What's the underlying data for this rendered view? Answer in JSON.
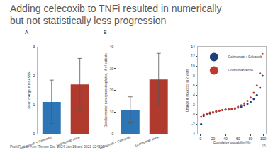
{
  "slide": {
    "title_lines": [
      "Adding celecoxib to TNFi resulted in numerically",
      "but not statistically less progression"
    ],
    "citation": "Proft F et al. Ann Rheum Dis. 2024 Jan 16:ard-2023-224699",
    "page": "15"
  },
  "chart_data": [
    {
      "type": "bar",
      "title": "A",
      "y_label": "Mean change in mSASSS",
      "categories": [
        "Golimumab + Celecoxib",
        "Golimumab alone"
      ],
      "values": [
        1.1,
        1.7
      ],
      "errors": [
        0.75,
        0.9
      ],
      "colors": [
        "#2e75b6",
        "#b03a2e"
      ],
      "ylim": [
        0,
        3
      ],
      "yticks": [
        0,
        1,
        2,
        3
      ],
      "grid": false
    },
    {
      "type": "bar",
      "title": "B",
      "y_label": "Development of new syndesmophytes, % of patients",
      "categories": [
        "Golimumab + Celecoxib",
        "Golimumab alone"
      ],
      "values": [
        11,
        25
      ],
      "errors": [
        6,
        12
      ],
      "colors": [
        "#2e75b6",
        "#b03a2e"
      ],
      "ylim": [
        0,
        40
      ],
      "yticks": [
        0,
        10,
        20,
        30,
        40
      ],
      "grid": false
    },
    {
      "type": "scatter",
      "x_label": "Cumulative probability (%)",
      "y_label": "Change in mSASSS in 2 years",
      "x": [
        1,
        5,
        10,
        15,
        20,
        25,
        30,
        35,
        40,
        45,
        50,
        55,
        60,
        65,
        70,
        75,
        80,
        85,
        90,
        95,
        99
      ],
      "series": [
        {
          "name": "Golimumab + Celecoxib",
          "color": "#1f3f7a",
          "marker": "circle",
          "values": [
            -2,
            -0.3,
            0,
            0.2,
            0.4,
            0.6,
            0.8,
            0.9,
            1,
            1,
            1.1,
            1.2,
            1.4,
            1.6,
            1.9,
            2.2,
            2.6,
            3.2,
            4,
            5.5,
            8
          ]
        },
        {
          "name": "Golimumab alone",
          "color": "#c0392b",
          "marker": "circle",
          "values": [
            -0.5,
            0,
            0.2,
            0.4,
            0.5,
            0.7,
            0.8,
            0.9,
            1,
            1.1,
            1.2,
            1.3,
            1.6,
            1.9,
            2.3,
            2.8,
            3.5,
            4.5,
            6,
            8.5,
            12.5
          ]
        }
      ],
      "xlim": [
        -5,
        105
      ],
      "xticks": [
        0,
        20,
        40,
        60,
        80,
        100
      ],
      "ylim": [
        -4,
        14
      ],
      "yticks": [
        -4,
        -2,
        0,
        2,
        4,
        6,
        8,
        10,
        12,
        14
      ],
      "legend": "upper left",
      "grid": false
    }
  ]
}
